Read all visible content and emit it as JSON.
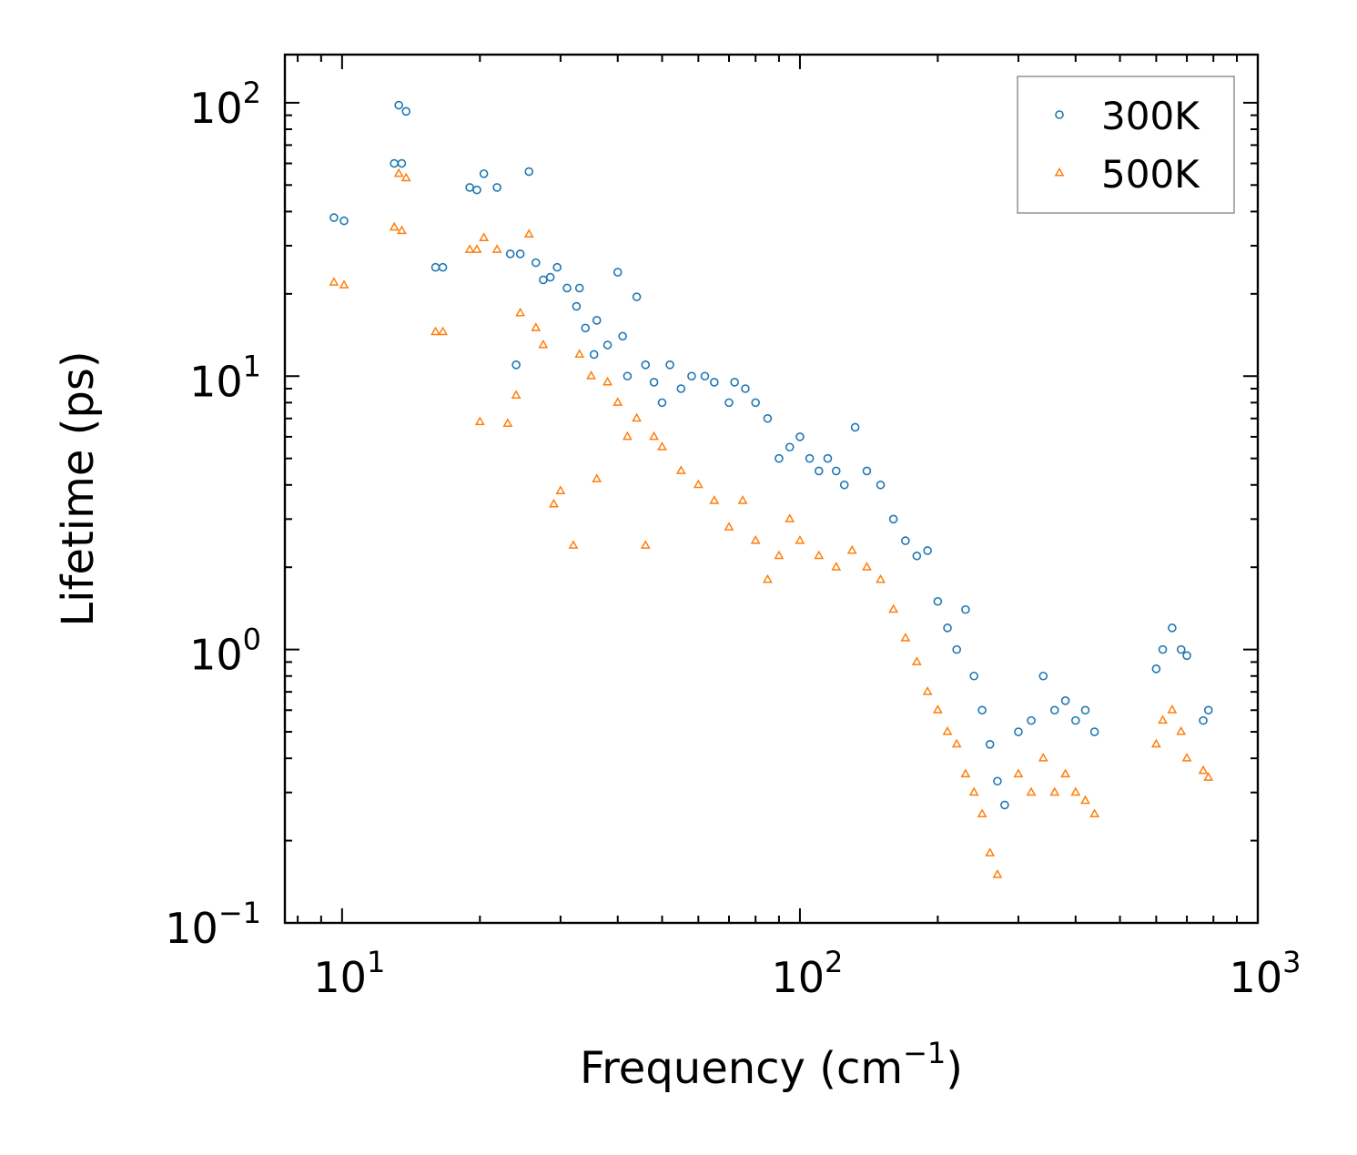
{
  "chart_data": {
    "type": "scatter",
    "xscale": "log",
    "yscale": "log",
    "xlabel": "Frequency (cm",
    "xlabel_sup": "−1",
    "xlabel_tail": ")",
    "ylabel": "Lifetime (ps)",
    "xlim": [
      7.5,
      1000
    ],
    "ylim": [
      0.1,
      150
    ],
    "x_ticks": [
      {
        "value": 10,
        "base": "10",
        "exp": "1"
      },
      {
        "value": 100,
        "base": "10",
        "exp": "2"
      },
      {
        "value": 1000,
        "base": "10",
        "exp": "3"
      }
    ],
    "y_ticks": [
      {
        "value": 0.1,
        "base": "10",
        "exp": "−1"
      },
      {
        "value": 1,
        "base": "10",
        "exp": "0"
      },
      {
        "value": 10,
        "base": "10",
        "exp": "1"
      },
      {
        "value": 100,
        "base": "10",
        "exp": "2"
      }
    ],
    "legend": {
      "position": "top-right",
      "entries": [
        "300K",
        "500K"
      ]
    },
    "series": [
      {
        "name": "300K",
        "marker": "circle",
        "color": "#1f77b4",
        "points": [
          [
            9.6,
            38
          ],
          [
            10.1,
            37
          ],
          [
            13.0,
            60
          ],
          [
            13.3,
            98
          ],
          [
            13.5,
            60
          ],
          [
            13.8,
            93
          ],
          [
            16.0,
            25
          ],
          [
            16.6,
            25
          ],
          [
            19.0,
            49
          ],
          [
            19.7,
            48
          ],
          [
            20.4,
            55
          ],
          [
            21.8,
            49
          ],
          [
            24.0,
            11
          ],
          [
            25.6,
            56
          ],
          [
            23.3,
            28
          ],
          [
            24.5,
            28
          ],
          [
            26.5,
            26
          ],
          [
            27.5,
            22.5
          ],
          [
            28.5,
            23
          ],
          [
            29.5,
            25
          ],
          [
            31.0,
            21
          ],
          [
            32.5,
            18
          ],
          [
            33.0,
            21
          ],
          [
            34.0,
            15
          ],
          [
            35.5,
            12
          ],
          [
            36.0,
            16
          ],
          [
            38.0,
            13
          ],
          [
            40.0,
            24
          ],
          [
            41.0,
            14
          ],
          [
            42.0,
            10
          ],
          [
            44.0,
            19.5
          ],
          [
            46.0,
            11
          ],
          [
            48.0,
            9.5
          ],
          [
            50.0,
            8
          ],
          [
            52.0,
            11
          ],
          [
            55.0,
            9
          ],
          [
            58.0,
            10
          ],
          [
            62.0,
            10
          ],
          [
            65.0,
            9.5
          ],
          [
            70.0,
            8
          ],
          [
            72.0,
            9.5
          ],
          [
            76.0,
            9
          ],
          [
            80.0,
            8
          ],
          [
            85.0,
            7
          ],
          [
            90.0,
            5
          ],
          [
            95.0,
            5.5
          ],
          [
            100.0,
            6
          ],
          [
            105.0,
            5
          ],
          [
            110.0,
            4.5
          ],
          [
            115.0,
            5
          ],
          [
            120.0,
            4.5
          ],
          [
            125.0,
            4
          ],
          [
            132.0,
            6.5
          ],
          [
            140.0,
            4.5
          ],
          [
            150.0,
            4
          ],
          [
            160.0,
            3
          ],
          [
            170.0,
            2.5
          ],
          [
            180.0,
            2.2
          ],
          [
            190.0,
            2.3
          ],
          [
            200.0,
            1.5
          ],
          [
            210.0,
            1.2
          ],
          [
            220.0,
            1.0
          ],
          [
            230.0,
            1.4
          ],
          [
            240.0,
            0.8
          ],
          [
            250.0,
            0.6
          ],
          [
            260.0,
            0.45
          ],
          [
            270.0,
            0.33
          ],
          [
            280.0,
            0.27
          ],
          [
            300.0,
            0.5
          ],
          [
            320.0,
            0.55
          ],
          [
            340.0,
            0.8
          ],
          [
            360.0,
            0.6
          ],
          [
            380.0,
            0.65
          ],
          [
            400.0,
            0.55
          ],
          [
            420.0,
            0.6
          ],
          [
            440.0,
            0.5
          ],
          [
            600.0,
            0.85
          ],
          [
            620.0,
            1.0
          ],
          [
            650.0,
            1.2
          ],
          [
            680.0,
            1.0
          ],
          [
            700.0,
            0.95
          ],
          [
            760.0,
            0.55
          ],
          [
            780.0,
            0.6
          ]
        ]
      },
      {
        "name": "500K",
        "marker": "triangle",
        "color": "#ff7f0e",
        "points": [
          [
            9.6,
            22
          ],
          [
            10.1,
            21.5
          ],
          [
            13.0,
            35
          ],
          [
            13.3,
            55
          ],
          [
            13.5,
            34
          ],
          [
            13.8,
            53
          ],
          [
            16.0,
            14.5
          ],
          [
            16.6,
            14.5
          ],
          [
            19.0,
            29
          ],
          [
            19.7,
            29
          ],
          [
            20.4,
            32
          ],
          [
            21.8,
            29
          ],
          [
            20.0,
            6.8
          ],
          [
            23.0,
            6.7
          ],
          [
            24.0,
            8.5
          ],
          [
            25.6,
            33
          ],
          [
            24.5,
            17
          ],
          [
            26.5,
            15
          ],
          [
            27.5,
            13
          ],
          [
            29.0,
            3.4
          ],
          [
            30.0,
            3.8
          ],
          [
            32.0,
            2.4
          ],
          [
            33.0,
            12
          ],
          [
            35.0,
            10
          ],
          [
            36.0,
            4.2
          ],
          [
            38.0,
            9.5
          ],
          [
            40.0,
            8
          ],
          [
            42.0,
            6
          ],
          [
            44.0,
            7
          ],
          [
            46.0,
            2.4
          ],
          [
            48.0,
            6
          ],
          [
            50.0,
            5.5
          ],
          [
            55.0,
            4.5
          ],
          [
            60.0,
            4
          ],
          [
            65.0,
            3.5
          ],
          [
            70.0,
            2.8
          ],
          [
            75.0,
            3.5
          ],
          [
            80.0,
            2.5
          ],
          [
            85.0,
            1.8
          ],
          [
            90.0,
            2.2
          ],
          [
            95.0,
            3
          ],
          [
            100.0,
            2.5
          ],
          [
            110.0,
            2.2
          ],
          [
            120.0,
            2
          ],
          [
            130.0,
            2.3
          ],
          [
            140.0,
            2
          ],
          [
            150.0,
            1.8
          ],
          [
            160.0,
            1.4
          ],
          [
            170.0,
            1.1
          ],
          [
            180.0,
            0.9
          ],
          [
            190.0,
            0.7
          ],
          [
            200.0,
            0.6
          ],
          [
            210.0,
            0.5
          ],
          [
            220.0,
            0.45
          ],
          [
            230.0,
            0.35
          ],
          [
            240.0,
            0.3
          ],
          [
            250.0,
            0.25
          ],
          [
            260.0,
            0.18
          ],
          [
            270.0,
            0.15
          ],
          [
            300.0,
            0.35
          ],
          [
            320.0,
            0.3
          ],
          [
            340.0,
            0.4
          ],
          [
            360.0,
            0.3
          ],
          [
            380.0,
            0.35
          ],
          [
            400.0,
            0.3
          ],
          [
            420.0,
            0.28
          ],
          [
            440.0,
            0.25
          ],
          [
            600.0,
            0.45
          ],
          [
            620.0,
            0.55
          ],
          [
            650.0,
            0.6
          ],
          [
            680.0,
            0.5
          ],
          [
            700.0,
            0.4
          ],
          [
            760.0,
            0.36
          ],
          [
            780.0,
            0.34
          ]
        ]
      }
    ]
  }
}
